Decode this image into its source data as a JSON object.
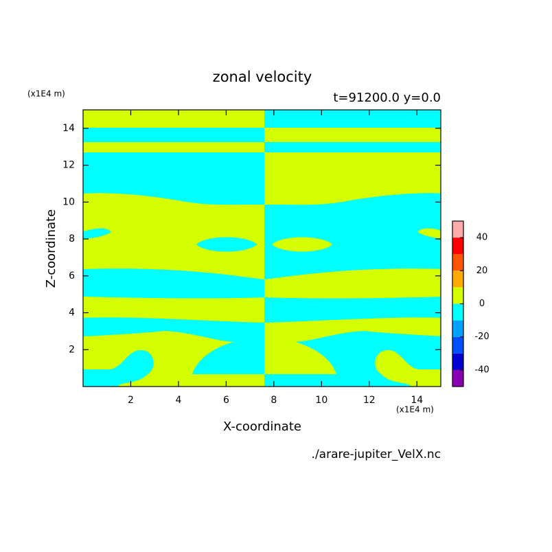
{
  "chart_data": {
    "type": "contour",
    "title": "zonal velocity",
    "subtitle": "t=91200.0 y=0.0",
    "x_label": "X-coordinate",
    "y_label": "Z-coordinate",
    "x_unit": "(x1E4 m)",
    "y_unit": "(x1E4 m)",
    "source": "./arare-jupiter_VelX.nc",
    "xlim": [
      0,
      15
    ],
    "ylim": [
      0,
      15
    ],
    "xticks": [
      2,
      4,
      6,
      8,
      10,
      12,
      14
    ],
    "yticks": [
      2,
      4,
      6,
      8,
      10,
      12,
      14
    ],
    "colorbar": {
      "levels": [
        -50,
        -40,
        -30,
        -20,
        -10,
        0,
        10,
        20,
        30,
        40,
        50
      ],
      "colors": [
        "#8a00b0",
        "#0000d0",
        "#0050ff",
        "#00a0ff",
        "#00ffff",
        "#d4ff00",
        "#ffaa00",
        "#ff5500",
        "#ff0000",
        "#ffaaaa"
      ],
      "ticks": [
        -40,
        -20,
        0,
        20,
        40
      ]
    }
  }
}
